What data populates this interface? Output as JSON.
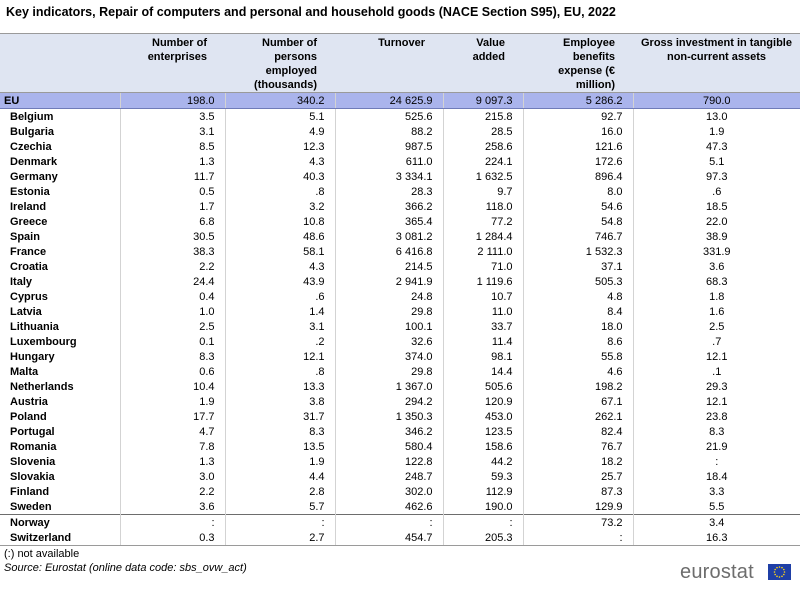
{
  "title": "Key indicators, Repair of computers and personal and household goods (NACE Section S95), EU, 2022",
  "columns": [
    "",
    "Number of enterprises",
    "Number of persons employed (thousands)",
    "Turnover",
    "Value added",
    "Employee benefits expense (€  million)",
    "Gross investment in tangible non-current assets"
  ],
  "rows": [
    [
      "EU",
      "198.0",
      "340.2",
      "24 625.9",
      "9 097.3",
      "5 286.2",
      "790.0"
    ],
    [
      "Belgium",
      "3.5",
      "5.1",
      "525.6",
      "215.8",
      "92.7",
      "13.0"
    ],
    [
      "Bulgaria",
      "3.1",
      "4.9",
      "88.2",
      "28.5",
      "16.0",
      "1.9"
    ],
    [
      "Czechia",
      "8.5",
      "12.3",
      "987.5",
      "258.6",
      "121.6",
      "47.3"
    ],
    [
      "Denmark",
      "1.3",
      "4.3",
      "611.0",
      "224.1",
      "172.6",
      "5.1"
    ],
    [
      "Germany",
      "11.7",
      "40.3",
      "3 334.1",
      "1 632.5",
      "896.4",
      "97.3"
    ],
    [
      "Estonia",
      "0.5",
      ".8",
      "28.3",
      "9.7",
      "8.0",
      ".6"
    ],
    [
      "Ireland",
      "1.7",
      "3.2",
      "366.2",
      "118.0",
      "54.6",
      "18.5"
    ],
    [
      "Greece",
      "6.8",
      "10.8",
      "365.4",
      "77.2",
      "54.8",
      "22.0"
    ],
    [
      "Spain",
      "30.5",
      "48.6",
      "3 081.2",
      "1 284.4",
      "746.7",
      "38.9"
    ],
    [
      "France",
      "38.3",
      "58.1",
      "6 416.8",
      "2 111.0",
      "1 532.3",
      "331.9"
    ],
    [
      "Croatia",
      "2.2",
      "4.3",
      "214.5",
      "71.0",
      "37.1",
      "3.6"
    ],
    [
      "Italy",
      "24.4",
      "43.9",
      "2 941.9",
      "1 119.6",
      "505.3",
      "68.3"
    ],
    [
      "Cyprus",
      "0.4",
      ".6",
      "24.8",
      "10.7",
      "4.8",
      "1.8"
    ],
    [
      "Latvia",
      "1.0",
      "1.4",
      "29.8",
      "11.0",
      "8.4",
      "1.6"
    ],
    [
      "Lithuania",
      "2.5",
      "3.1",
      "100.1",
      "33.7",
      "18.0",
      "2.5"
    ],
    [
      "Luxembourg",
      "0.1",
      ".2",
      "32.6",
      "11.4",
      "8.6",
      ".7"
    ],
    [
      "Hungary",
      "8.3",
      "12.1",
      "374.0",
      "98.1",
      "55.8",
      "12.1"
    ],
    [
      "Malta",
      "0.6",
      ".8",
      "29.8",
      "14.4",
      "4.6",
      ".1"
    ],
    [
      "Netherlands",
      "10.4",
      "13.3",
      "1 367.0",
      "505.6",
      "198.2",
      "29.3"
    ],
    [
      "Austria",
      "1.9",
      "3.8",
      "294.2",
      "120.9",
      "67.1",
      "12.1"
    ],
    [
      "Poland",
      "17.7",
      "31.7",
      "1 350.3",
      "453.0",
      "262.1",
      "23.8"
    ],
    [
      "Portugal",
      "4.7",
      "8.3",
      "346.2",
      "123.5",
      "82.4",
      "8.3"
    ],
    [
      "Romania",
      "7.8",
      "13.5",
      "580.4",
      "158.6",
      "76.7",
      "21.9"
    ],
    [
      "Slovenia",
      "1.3",
      "1.9",
      "122.8",
      "44.2",
      "18.2",
      ":"
    ],
    [
      "Slovakia",
      "3.0",
      "4.4",
      "248.7",
      "59.3",
      "25.7",
      "18.4"
    ],
    [
      "Finland",
      "2.2",
      "2.8",
      "302.0",
      "112.9",
      "87.3",
      "3.3"
    ],
    [
      "Sweden",
      "3.6",
      "5.7",
      "462.6",
      "190.0",
      "129.9",
      "5.5"
    ],
    [
      "Norway",
      ":",
      ":",
      ":",
      ":",
      "73.2",
      "3.4"
    ],
    [
      "Switzerland",
      "0.3",
      "2.7",
      "454.7",
      "205.3",
      ":",
      "16.3"
    ]
  ],
  "chart_data": {
    "type": "table",
    "title": "Key indicators, Repair of computers and personal and household goods (NACE Section S95), EU, 2022",
    "columns": [
      "Number of enterprises",
      "Number of persons employed (thousands)",
      "Turnover",
      "Value added",
      "Employee benefits expense (€  million)",
      "Gross investment in tangible non-current assets"
    ]
  },
  "footnote": "(:) not available",
  "source": "Source: Eurostat (online data code: sbs_ovw_act)",
  "logo_text": "eurostat",
  "colors": {
    "header_bg": "#dfe5f2",
    "eu_row_bg": "#aab4ec",
    "logo_flag": "#1f3fa6"
  }
}
